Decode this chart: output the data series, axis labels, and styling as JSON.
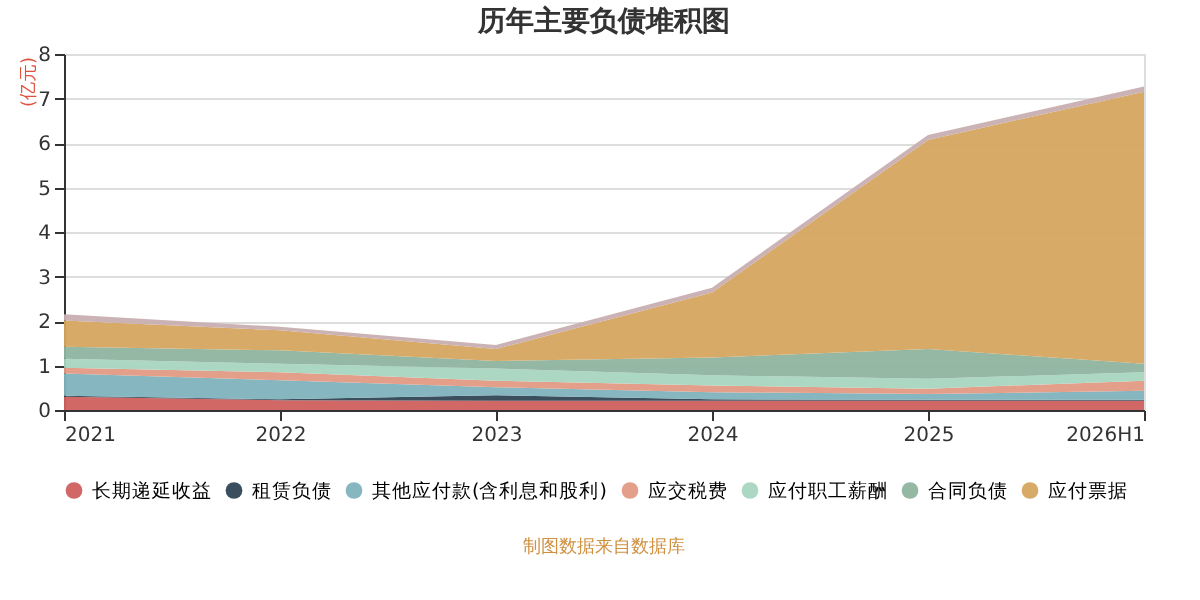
{
  "chart_data": {
    "type": "area",
    "stacked": true,
    "title": "历年主要负债堆积图",
    "ylabel": "(亿元)",
    "categories": [
      "2021",
      "2022",
      "2023",
      "2024",
      "2025",
      "2026H1"
    ],
    "ylim": [
      0,
      8
    ],
    "yticks": [
      0,
      1,
      2,
      3,
      4,
      5,
      6,
      7,
      8
    ],
    "grid": "y",
    "legend": "bottom",
    "series": [
      {
        "name": "长期递延收益",
        "color": "#d0605e",
        "values": [
          0.3,
          0.22,
          0.21,
          0.21,
          0.21,
          0.21
        ]
      },
      {
        "name": "租赁负债",
        "color": "#2f4554",
        "values": [
          0.02,
          0.02,
          0.12,
          0.03,
          0.02,
          0.02
        ]
      },
      {
        "name": "其他应付款(含利息和股利)",
        "color": "#7fb3bd",
        "values": [
          0.5,
          0.43,
          0.18,
          0.16,
          0.13,
          0.2
        ]
      },
      {
        "name": "应交税费",
        "color": "#e39a85",
        "values": [
          0.13,
          0.18,
          0.15,
          0.15,
          0.12,
          0.23
        ]
      },
      {
        "name": "应付职工薪酬",
        "color": "#a8d5c0",
        "values": [
          0.2,
          0.19,
          0.27,
          0.23,
          0.22,
          0.19
        ]
      },
      {
        "name": "合同负债",
        "color": "#8fb4a0",
        "values": [
          0.27,
          0.3,
          0.17,
          0.4,
          0.67,
          0.19
        ]
      },
      {
        "name": "应付票据",
        "color": "#d6a55f",
        "values": [
          0.59,
          0.45,
          0.27,
          1.46,
          4.7,
          6.11
        ]
      },
      {
        "color": "#c8aeb0",
        "values": [
          0.14,
          0.08,
          0.09,
          0.11,
          0.11,
          0.12
        ]
      }
    ],
    "annotations": [
      "制图数据来自数据库"
    ]
  }
}
